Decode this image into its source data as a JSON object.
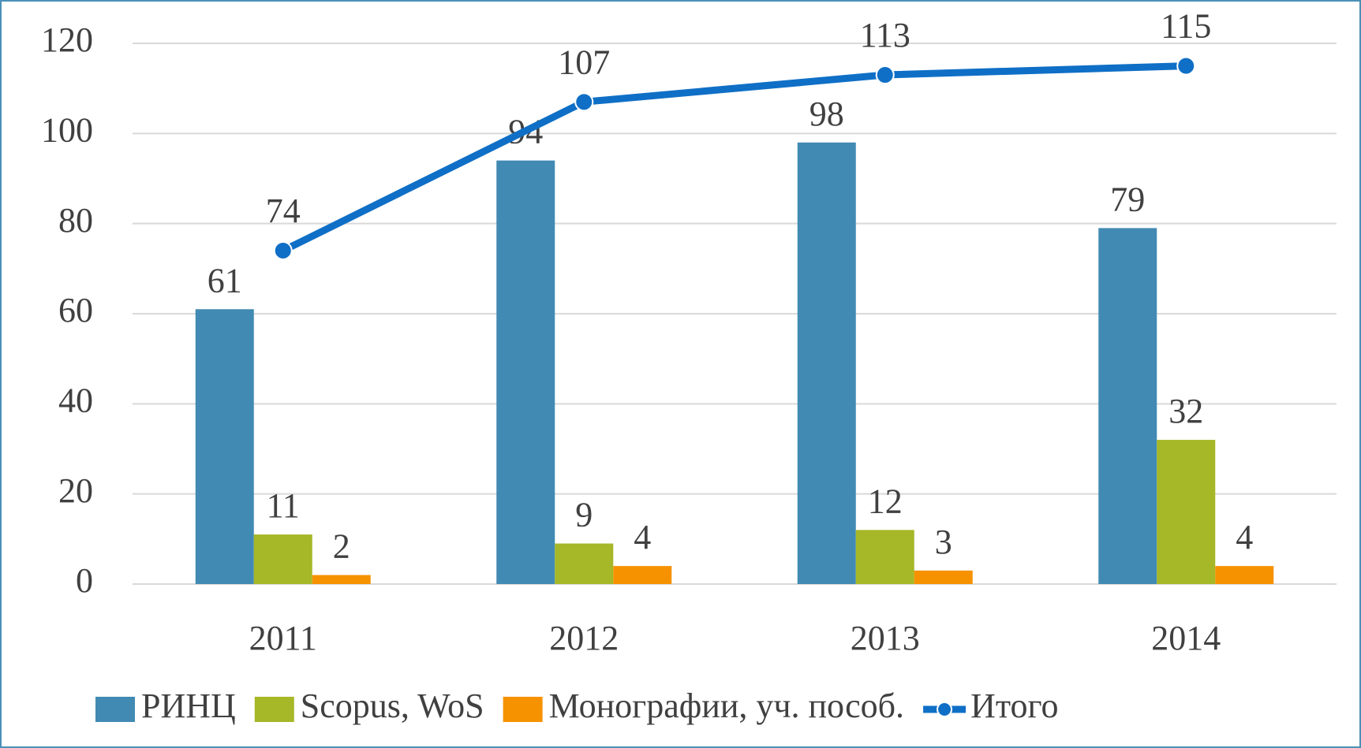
{
  "chart_data": {
    "type": "bar",
    "categories": [
      "2011",
      "2012",
      "2013",
      "2014"
    ],
    "series": [
      {
        "name": "РИНЦ",
        "color": "#418ab3",
        "values": [
          61,
          94,
          98,
          79
        ]
      },
      {
        "name": "Scopus, WoS",
        "color": "#a6b727",
        "values": [
          11,
          9,
          12,
          32
        ]
      },
      {
        "name": "Монографии, уч. пособ.",
        "color": "#f69200",
        "values": [
          2,
          4,
          3,
          4
        ]
      },
      {
        "name": "Итого",
        "color": "#0f6fc6",
        "type": "line",
        "values": [
          74,
          107,
          113,
          115
        ]
      }
    ],
    "ylim": [
      0,
      120
    ],
    "yticks": [
      0,
      20,
      40,
      60,
      80,
      100,
      120
    ],
    "grid": true,
    "legend": "bottom"
  }
}
